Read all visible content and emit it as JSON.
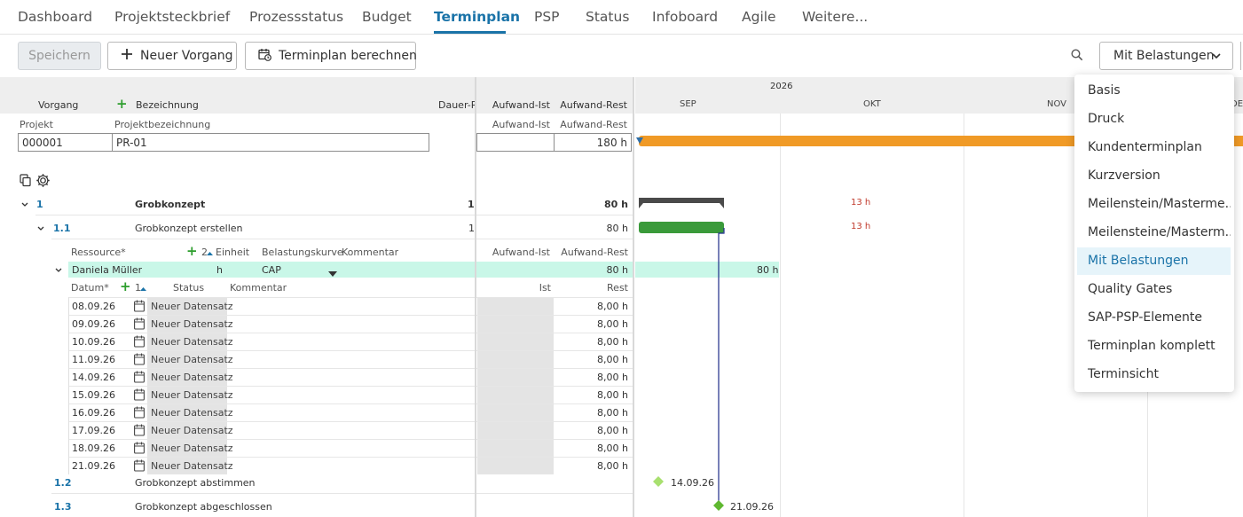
{
  "nav": {
    "tabs": [
      "Dashboard",
      "Projektsteckbrief",
      "Prozessstatus",
      "Budget",
      "Terminplan",
      "PSP",
      "Status",
      "Infoboard",
      "Agile",
      "Weitere..."
    ],
    "active": "Terminplan"
  },
  "toolbar": {
    "save": "Speichern",
    "new_task": "Neuer Vorgang",
    "calc": "Terminplan berechnen",
    "view_selected": "Mit Belastungen"
  },
  "view_menu": {
    "items": [
      "Basis",
      "Druck",
      "Kundenterminplan",
      "Kurzversion",
      "Meilenstein/Masterme...",
      "Meilensteine/Masterm...",
      "Mit Belastungen",
      "Quality Gates",
      "SAP-PSP-Elemente",
      "Terminplan komplett",
      "Terminsicht"
    ],
    "selected": "Mit Belastungen"
  },
  "grid": {
    "col_vorgang": "Vorgang",
    "col_bezeichnung": "Bezeichnung",
    "col_dauer": "Dauer-R",
    "col_aufwand_ist": "Aufwand-Ist",
    "col_aufwand_rest": "Aufwand-Rest",
    "projekt_label": "Projekt",
    "projektbez_label": "Projektbezeichnung",
    "projekt_ist_label": "Aufwand-Ist",
    "projekt_rest_label": "Aufwand-Rest",
    "projekt_nr": "000001",
    "projekt_bez": "PR-01",
    "projekt_rest": "180 h",
    "rows": [
      {
        "nr": "1",
        "name": "Grobkonzept",
        "dauer": "1",
        "rest": "80 h"
      },
      {
        "nr": "1.1",
        "name": "Grobkonzept erstellen",
        "dauer": "1",
        "rest": "80 h"
      },
      {
        "nr": "1.2",
        "name": "Grobkonzept abstimmen"
      },
      {
        "nr": "1.3",
        "name": "Grobkonzept abgeschlossen"
      }
    ],
    "resource_header": {
      "ressource": "Ressource*",
      "count": "2",
      "einheit": "Einheit",
      "kurve": "Belastungskurve",
      "kommentar": "Kommentar",
      "ist": "Aufwand-Ist",
      "rest": "Aufwand-Rest"
    },
    "resource": {
      "name": "Daniela Müller",
      "einheit": "h",
      "kurve": "CAP",
      "rest": "80 h",
      "gantt_value": "80 h"
    },
    "date_header": {
      "datum": "Datum*",
      "count": "1",
      "status": "Status",
      "kommentar": "Kommentar",
      "ist": "Ist",
      "rest": "Rest"
    },
    "date_rows": [
      {
        "date": "08.09.26",
        "status": "Neuer Datensatz",
        "rest": "8,00 h"
      },
      {
        "date": "09.09.26",
        "status": "Neuer Datensatz",
        "rest": "8,00 h"
      },
      {
        "date": "10.09.26",
        "status": "Neuer Datensatz",
        "rest": "8,00 h"
      },
      {
        "date": "11.09.26",
        "status": "Neuer Datensatz",
        "rest": "8,00 h"
      },
      {
        "date": "14.09.26",
        "status": "Neuer Datensatz",
        "rest": "8,00 h"
      },
      {
        "date": "15.09.26",
        "status": "Neuer Datensatz",
        "rest": "8,00 h"
      },
      {
        "date": "16.09.26",
        "status": "Neuer Datensatz",
        "rest": "8,00 h"
      },
      {
        "date": "17.09.26",
        "status": "Neuer Datensatz",
        "rest": "8,00 h"
      },
      {
        "date": "18.09.26",
        "status": "Neuer Datensatz",
        "rest": "8,00 h"
      },
      {
        "date": "21.09.26",
        "status": "Neuer Datensatz",
        "rest": "8,00 h"
      }
    ]
  },
  "gantt": {
    "year": "2026",
    "months": [
      "SEP",
      "OKT",
      "NOV",
      "DE"
    ],
    "load_1": "13 h",
    "load_11": "13 h",
    "milestone_12": "14.09.26",
    "milestone_13": "21.09.26",
    "colors": {
      "project": "#f09a26",
      "task": "#3a9a3a",
      "summary": "#4a4a4a",
      "milestone": "#8fd14f",
      "load": "#c0392b"
    }
  }
}
